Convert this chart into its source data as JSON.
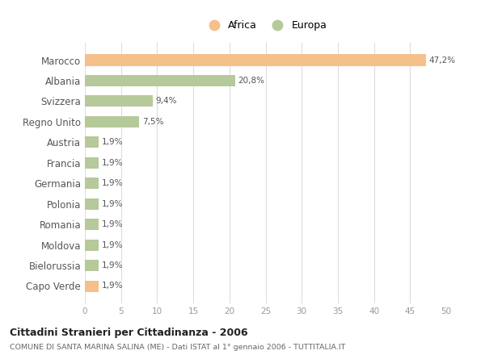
{
  "countries": [
    "Marocco",
    "Albania",
    "Svizzera",
    "Regno Unito",
    "Austria",
    "Francia",
    "Germania",
    "Polonia",
    "Romania",
    "Moldova",
    "Bielorussia",
    "Capo Verde"
  ],
  "values": [
    47.2,
    20.8,
    9.4,
    7.5,
    1.9,
    1.9,
    1.9,
    1.9,
    1.9,
    1.9,
    1.9,
    1.9
  ],
  "labels": [
    "47,2%",
    "20,8%",
    "9,4%",
    "7,5%",
    "1,9%",
    "1,9%",
    "1,9%",
    "1,9%",
    "1,9%",
    "1,9%",
    "1,9%",
    "1,9%"
  ],
  "colors": [
    "#f5c08a",
    "#b5c99a",
    "#b5c99a",
    "#b5c99a",
    "#b5c99a",
    "#b5c99a",
    "#b5c99a",
    "#b5c99a",
    "#b5c99a",
    "#b5c99a",
    "#b5c99a",
    "#f5c08a"
  ],
  "legend_africa_color": "#f5c08a",
  "legend_europa_color": "#b5c99a",
  "xlim": [
    0,
    50
  ],
  "xticks": [
    0,
    5,
    10,
    15,
    20,
    25,
    30,
    35,
    40,
    45,
    50
  ],
  "title": "Cittadini Stranieri per Cittadinanza - 2006",
  "subtitle": "COMUNE DI SANTA MARINA SALINA (ME) - Dati ISTAT al 1° gennaio 2006 - TUTTITALIA.IT",
  "background_color": "#ffffff",
  "grid_color": "#dddddd",
  "bar_height": 0.55
}
